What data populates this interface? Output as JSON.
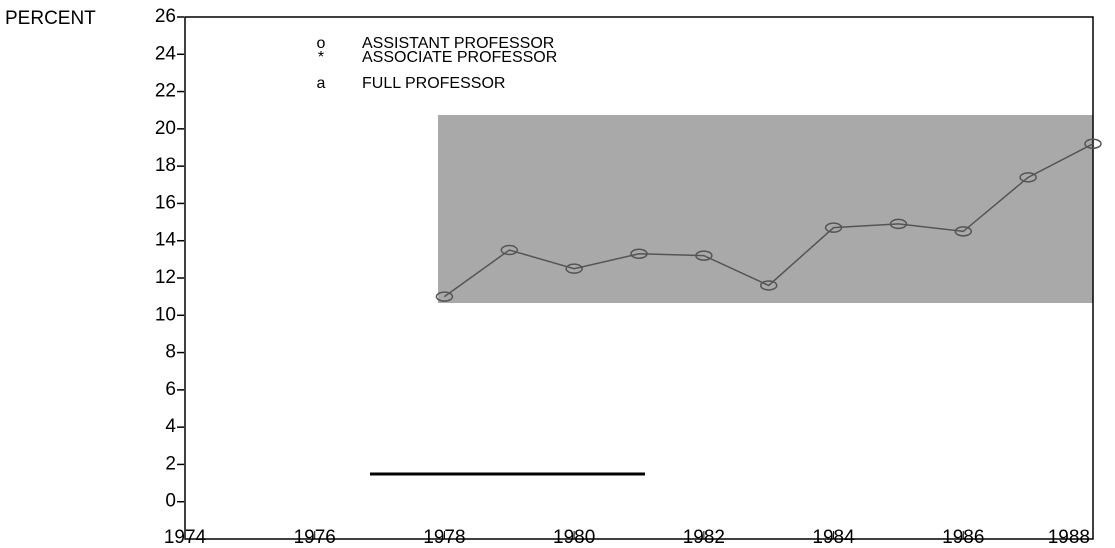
{
  "chart_data": {
    "type": "line",
    "ylabel": "PERCENT",
    "legend": [
      {
        "symbol": "o",
        "name": "ASSISTANT PROFESSOR"
      },
      {
        "symbol": "*",
        "name": "ASSOCIATE PROFESSOR"
      },
      {
        "symbol": "a",
        "name": "FULL PROFESSOR"
      }
    ],
    "x": [
      1978,
      1979,
      1980,
      1981,
      1982,
      1983,
      1984,
      1985,
      1986,
      1987,
      1988
    ],
    "series": [
      {
        "name": "ASSISTANT PROFESSOR",
        "color": "#555555",
        "values": [
          11.0,
          13.5,
          12.5,
          13.3,
          13.2,
          11.6,
          14.7,
          14.9,
          14.5,
          17.4,
          19.2
        ]
      }
    ],
    "xlim": [
      1974,
      1988
    ],
    "xticks": [
      1974,
      1976,
      1978,
      1980,
      1982,
      1984,
      1986,
      1988
    ],
    "ylim": [
      -2,
      26
    ],
    "yticks": [
      0,
      2,
      4,
      6,
      8,
      10,
      12,
      14,
      16,
      18,
      20,
      22,
      24,
      26
    ]
  }
}
